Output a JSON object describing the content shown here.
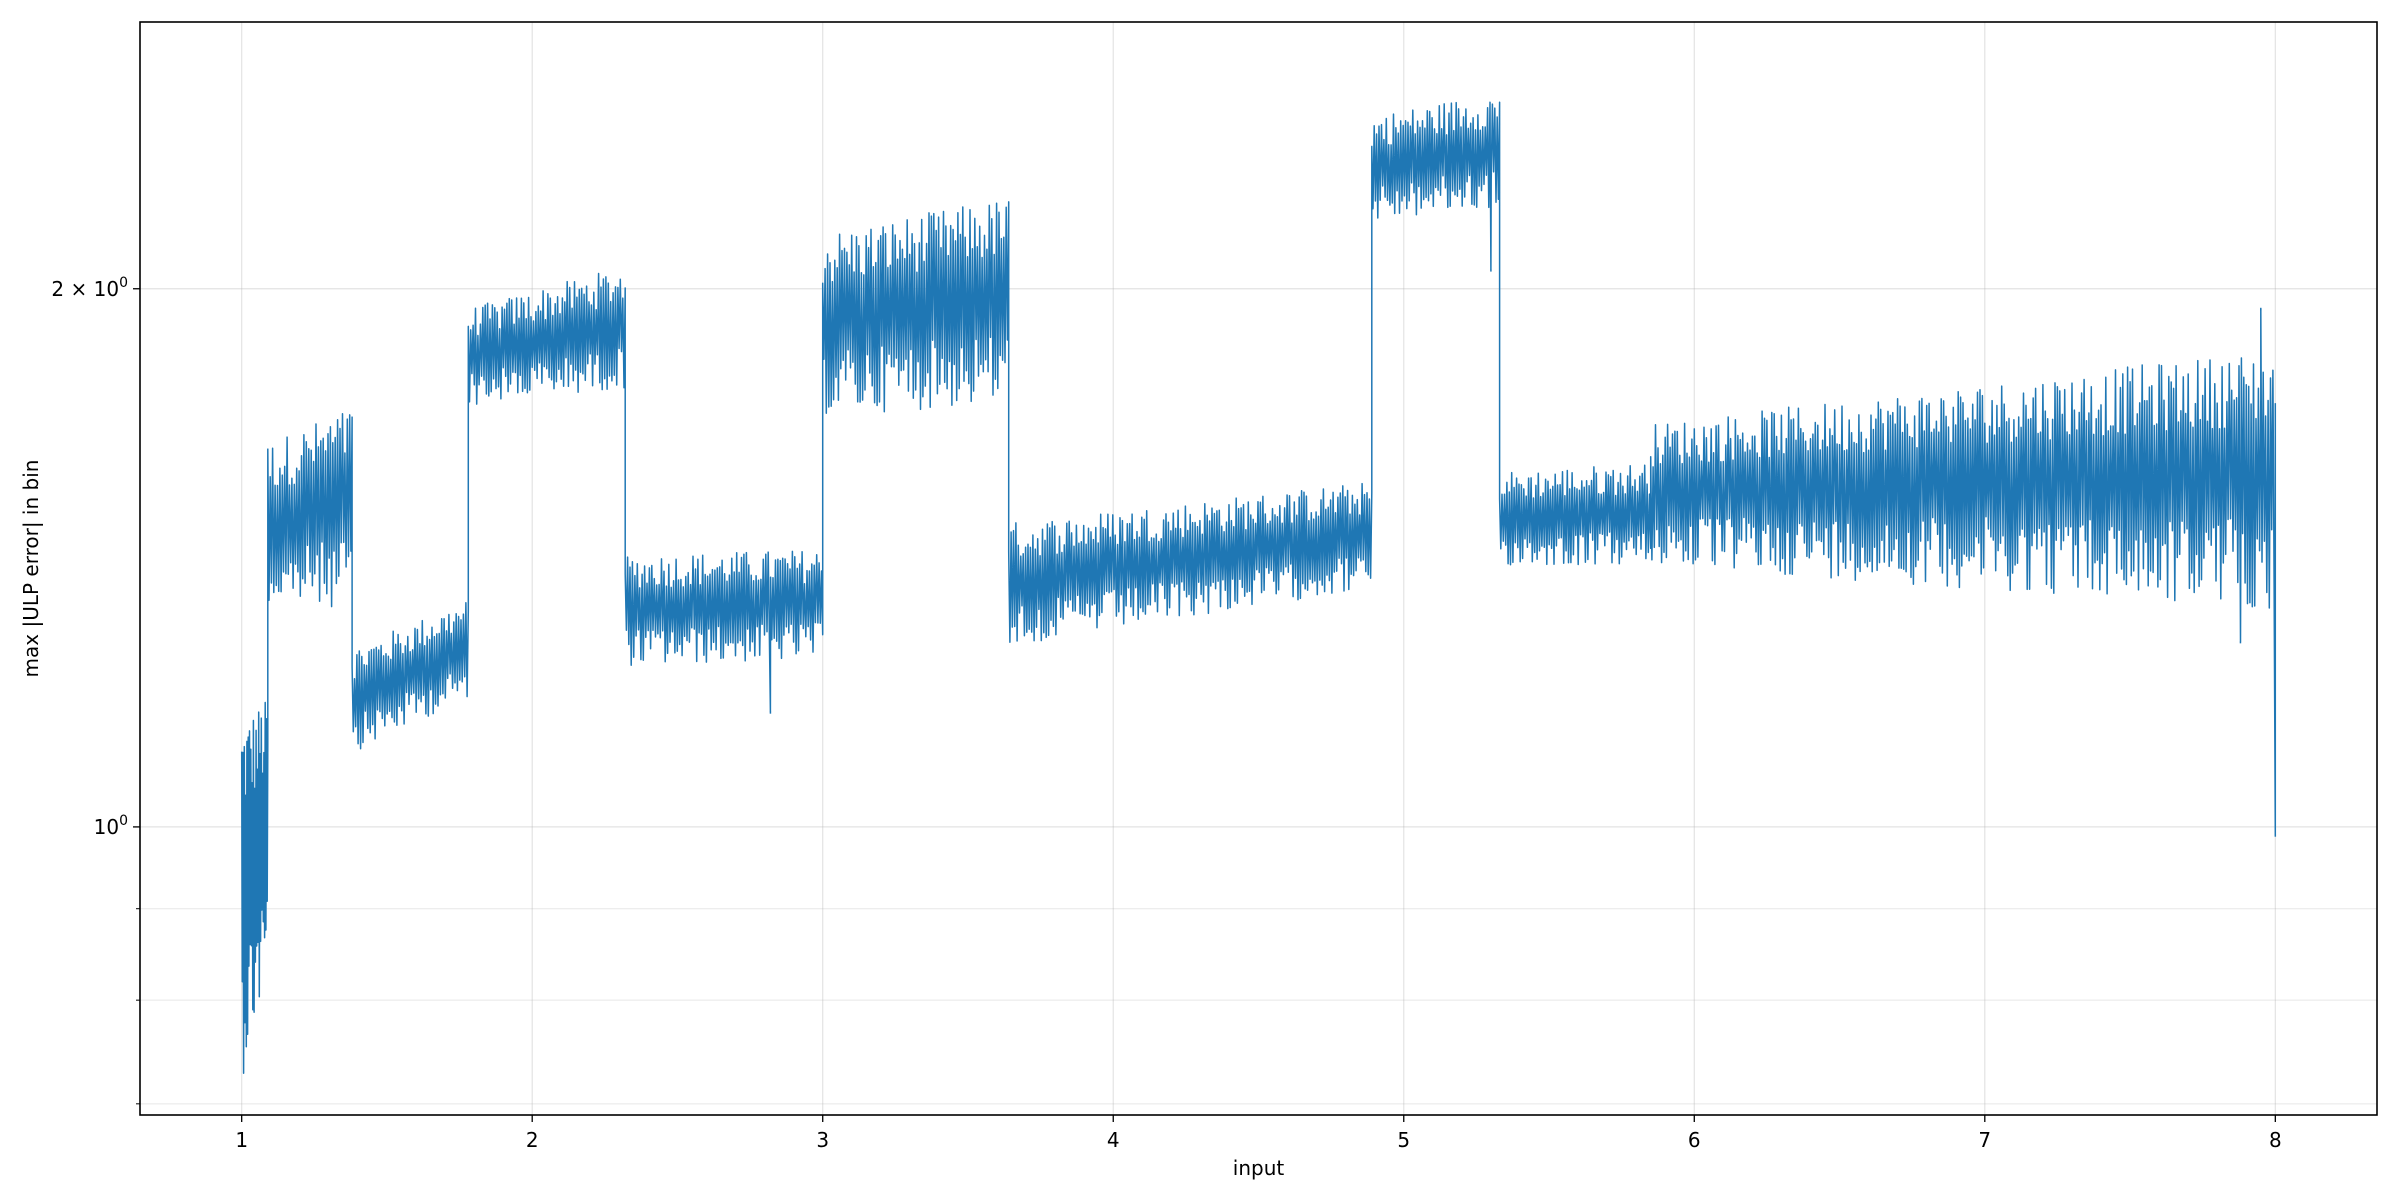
{
  "chart_data": {
    "type": "line",
    "title": "",
    "xlabel": "input",
    "ylabel": "max |ULP error| in bin",
    "xlim": [
      0.65,
      8.35
    ],
    "ylim": [
      0.69,
      2.82
    ],
    "yscale": "log",
    "grid": true,
    "legend": "none",
    "x_ticks": [
      {
        "value": 1,
        "label": "1"
      },
      {
        "value": 2,
        "label": "2"
      },
      {
        "value": 3,
        "label": "3"
      },
      {
        "value": 4,
        "label": "4"
      },
      {
        "value": 5,
        "label": "5"
      },
      {
        "value": 6,
        "label": "6"
      },
      {
        "value": 7,
        "label": "7"
      },
      {
        "value": 8,
        "label": "8"
      }
    ],
    "y_ticks_major": [
      {
        "value": 1.0,
        "label_base": "10",
        "label_exp": "0"
      },
      {
        "value": 2.0,
        "label_base": "2 × 10",
        "label_exp": "0"
      }
    ],
    "y_ticks_minor": [
      0.7,
      0.8,
      0.9
    ],
    "series": [
      {
        "color": "#1f77b4",
        "segments": [
          {
            "x": [
              1.0,
              1.09
            ],
            "y_low": [
              0.72,
              0.82
            ],
            "y_high": [
              1.15,
              1.18
            ]
          },
          {
            "x": [
              1.09,
              1.38
            ],
            "y_low": [
              1.32,
              1.33
            ],
            "y_high": [
              1.64,
              1.72
            ]
          },
          {
            "x": [
              1.38,
              1.78
            ],
            "y_low": [
              1.1,
              1.18
            ],
            "y_high": [
              1.26,
              1.34
            ]
          },
          {
            "x": [
              1.78,
              2.32
            ],
            "y_low": [
              1.72,
              1.76
            ],
            "y_high": [
              1.95,
              2.06
            ]
          },
          {
            "x": [
              2.32,
              3.0
            ],
            "y_low": [
              1.23,
              1.24
            ],
            "y_high": [
              1.42,
              1.43
            ]
          },
          {
            "x": [
              3.0,
              3.64
            ],
            "y_low": [
              1.7,
              1.72
            ],
            "y_high": [
              2.15,
              2.25
            ]
          },
          {
            "x": [
              3.64,
              4.89
            ],
            "y_low": [
              1.26,
              1.36
            ],
            "y_high": [
              1.48,
              1.56
            ]
          },
          {
            "x": [
              4.89,
              5.33
            ],
            "y_low": [
              2.18,
              2.22
            ],
            "y_high": [
              2.5,
              2.58
            ]
          },
          {
            "x": [
              5.33,
              5.85
            ],
            "y_low": [
              1.4,
              1.4
            ],
            "y_high": [
              1.58,
              1.6
            ]
          },
          {
            "x": [
              5.85,
              8.0
            ],
            "y_low": [
              1.4,
              1.32
            ],
            "y_high": [
              1.68,
              1.85
            ]
          }
        ],
        "spikes": [
          {
            "x": 2.82,
            "y": 1.16
          },
          {
            "x": 5.3,
            "y": 2.05
          },
          {
            "x": 7.88,
            "y": 1.27
          },
          {
            "x": 7.95,
            "y": 1.95
          },
          {
            "x": 8.0,
            "y": 0.99
          }
        ]
      }
    ]
  }
}
